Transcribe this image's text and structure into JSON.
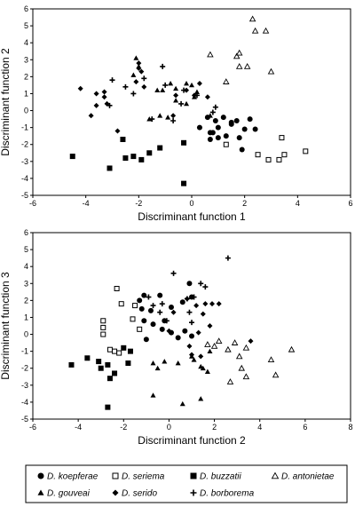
{
  "chart_data": [
    {
      "type": "scatter",
      "title": "",
      "xlabel": "Discriminant function 1",
      "ylabel": "Discriminant function 2",
      "xlim": [
        -6,
        6
      ],
      "ylim": [
        -5,
        6
      ],
      "xticks": [
        -6,
        -4,
        -2,
        0,
        2,
        4,
        6
      ],
      "yticks": [
        -5,
        -4,
        -3,
        -2,
        -1,
        0,
        1,
        2,
        3,
        4,
        5,
        6
      ],
      "series": [
        {
          "name": "D. koepferae",
          "marker": "circle-filled",
          "points": [
            [
              0.6,
              -0.4
            ],
            [
              0.9,
              -0.6
            ],
            [
              1.2,
              -0.4
            ],
            [
              1.0,
              -1.0
            ],
            [
              0.8,
              -1.3
            ],
            [
              1.5,
              -0.7
            ],
            [
              1.3,
              -1.5
            ],
            [
              0.7,
              -1.3
            ],
            [
              2.0,
              -1.1
            ],
            [
              2.2,
              -0.5
            ],
            [
              2.4,
              -1.1
            ],
            [
              1.8,
              -1.6
            ],
            [
              1.9,
              -2.3
            ],
            [
              1.5,
              -0.8
            ],
            [
              1.0,
              -1.6
            ],
            [
              0.3,
              -1.0
            ],
            [
              0.7,
              -1.7
            ],
            [
              1.7,
              -0.6
            ]
          ]
        },
        {
          "name": "D. seriema",
          "marker": "square-open",
          "points": [
            [
              1.3,
              -2.0
            ],
            [
              2.5,
              -2.6
            ],
            [
              2.9,
              -2.9
            ],
            [
              3.3,
              -2.9
            ],
            [
              3.5,
              -2.6
            ],
            [
              3.4,
              -1.6
            ],
            [
              4.3,
              -2.4
            ]
          ]
        },
        {
          "name": "D. buzzatii",
          "marker": "square-filled",
          "points": [
            [
              -4.5,
              -2.7
            ],
            [
              -3.1,
              -3.4
            ],
            [
              -2.6,
              -1.7
            ],
            [
              -2.5,
              -2.8
            ],
            [
              -2.2,
              -2.7
            ],
            [
              -1.9,
              -2.9
            ],
            [
              -1.6,
              -2.5
            ],
            [
              -1.2,
              -2.2
            ],
            [
              -0.3,
              -1.9
            ],
            [
              -0.3,
              -4.3
            ]
          ]
        },
        {
          "name": "D. antonietae",
          "marker": "triangle-open",
          "points": [
            [
              2.3,
              5.4
            ],
            [
              2.4,
              4.7
            ],
            [
              2.8,
              4.7
            ],
            [
              0.7,
              3.3
            ],
            [
              1.7,
              3.2
            ],
            [
              1.8,
              3.4
            ],
            [
              2.1,
              2.6
            ],
            [
              1.3,
              1.7
            ],
            [
              1.8,
              2.6
            ],
            [
              3.0,
              2.3
            ]
          ]
        },
        {
          "name": "D. gouveai",
          "marker": "triangle-filled",
          "points": [
            [
              -2.1,
              3.1
            ],
            [
              -2.0,
              2.6
            ],
            [
              -2.2,
              2.1
            ],
            [
              -1.3,
              1.2
            ],
            [
              -1.1,
              1.2
            ],
            [
              -0.6,
              0.6
            ],
            [
              -0.2,
              1.6
            ],
            [
              0.0,
              1.5
            ],
            [
              0.2,
              1.1
            ],
            [
              0.1,
              0.8
            ],
            [
              -0.2,
              0.4
            ],
            [
              -0.6,
              1.3
            ],
            [
              -0.8,
              1.6
            ],
            [
              -1.6,
              -0.5
            ],
            [
              -1.2,
              -0.3
            ],
            [
              -0.9,
              -0.4
            ],
            [
              0.7,
              -0.3
            ]
          ]
        },
        {
          "name": "D. serido",
          "marker": "diamond-filled",
          "points": [
            [
              -4.2,
              1.3
            ],
            [
              -3.6,
              1.0
            ],
            [
              -3.3,
              0.8
            ],
            [
              -3.2,
              0.4
            ],
            [
              -3.3,
              1.1
            ],
            [
              -3.6,
              0.3
            ],
            [
              -3.8,
              -0.3
            ],
            [
              -2.0,
              2.8
            ],
            [
              -2.0,
              2.5
            ],
            [
              -1.9,
              2.3
            ],
            [
              -2.1,
              1.7
            ],
            [
              -1.8,
              1.4
            ],
            [
              -0.6,
              0.9
            ],
            [
              -0.2,
              1.2
            ],
            [
              0.1,
              0.9
            ],
            [
              0.3,
              1.6
            ],
            [
              0.6,
              0.8
            ],
            [
              -0.7,
              -0.3
            ],
            [
              -2.8,
              -1.2
            ]
          ]
        },
        {
          "name": "D. borborema",
          "marker": "plus",
          "points": [
            [
              -3.0,
              1.8
            ],
            [
              -2.5,
              1.4
            ],
            [
              -3.1,
              0.3
            ],
            [
              -2.2,
              1.0
            ],
            [
              -1.8,
              1.9
            ],
            [
              -1.1,
              2.6
            ],
            [
              -1.0,
              1.5
            ],
            [
              -1.5,
              -0.5
            ],
            [
              -0.7,
              -0.6
            ],
            [
              -0.4,
              0.4
            ],
            [
              -0.3,
              1.2
            ],
            [
              0.2,
              0.9
            ],
            [
              0.8,
              -0.1
            ],
            [
              0.9,
              0.2
            ]
          ]
        }
      ]
    },
    {
      "type": "scatter",
      "title": "",
      "xlabel": "Discriminant function 2",
      "ylabel": "Discriminant function 3",
      "xlim": [
        -6,
        8
      ],
      "ylim": [
        -5,
        6
      ],
      "xticks": [
        -6,
        -4,
        -2,
        0,
        2,
        4,
        6,
        8
      ],
      "yticks": [
        -5,
        -4,
        -3,
        -2,
        -1,
        0,
        1,
        2,
        3,
        4,
        5,
        6
      ],
      "series": [
        {
          "name": "D. koepferae",
          "marker": "circle-filled",
          "points": [
            [
              -1.3,
              2.0
            ],
            [
              -1.1,
              2.3
            ],
            [
              -0.4,
              2.3
            ],
            [
              -0.8,
              1.4
            ],
            [
              -1.2,
              1.5
            ],
            [
              -1.1,
              0.8
            ],
            [
              -0.7,
              0.6
            ],
            [
              -0.3,
              0.3
            ],
            [
              0.1,
              0.1
            ],
            [
              0.4,
              -0.2
            ],
            [
              0.7,
              0.2
            ],
            [
              1.0,
              -0.1
            ],
            [
              0.9,
              3.0
            ],
            [
              1.0,
              2.2
            ],
            [
              0.6,
              1.9
            ],
            [
              0.1,
              1.6
            ],
            [
              -0.2,
              0.8
            ],
            [
              -1.0,
              -0.3
            ]
          ]
        },
        {
          "name": "D. seriema",
          "marker": "square-open",
          "points": [
            [
              -2.3,
              2.7
            ],
            [
              -2.1,
              1.8
            ],
            [
              -2.9,
              0.8
            ],
            [
              -2.9,
              0.4
            ],
            [
              -2.9,
              0.0
            ],
            [
              -2.6,
              -0.9
            ],
            [
              -2.4,
              -1.0
            ],
            [
              -1.5,
              1.7
            ],
            [
              -1.6,
              0.9
            ],
            [
              -1.3,
              0.3
            ],
            [
              -2.2,
              -1.1
            ]
          ]
        },
        {
          "name": "D. buzzatii",
          "marker": "square-filled",
          "points": [
            [
              -4.3,
              -1.8
            ],
            [
              -3.6,
              -1.4
            ],
            [
              -3.1,
              -1.6
            ],
            [
              -3.0,
              -2.0
            ],
            [
              -2.7,
              -1.8
            ],
            [
              -2.6,
              -2.6
            ],
            [
              -2.7,
              -4.3
            ],
            [
              -2.4,
              -2.3
            ],
            [
              -2.0,
              -0.8
            ],
            [
              -1.8,
              -1.7
            ],
            [
              -1.7,
              -1.0
            ]
          ]
        },
        {
          "name": "D. antonietae",
          "marker": "triangle-open",
          "points": [
            [
              1.7,
              -0.6
            ],
            [
              2.0,
              -0.7
            ],
            [
              2.2,
              -0.4
            ],
            [
              2.6,
              -0.9
            ],
            [
              2.9,
              -0.5
            ],
            [
              3.4,
              -0.8
            ],
            [
              3.1,
              -1.3
            ],
            [
              3.2,
              -2.0
            ],
            [
              3.4,
              -2.5
            ],
            [
              2.7,
              -2.8
            ],
            [
              4.5,
              -1.5
            ],
            [
              4.7,
              -2.4
            ],
            [
              5.4,
              -0.9
            ]
          ]
        },
        {
          "name": "D. gouveai",
          "marker": "triangle-filled",
          "points": [
            [
              -0.7,
              -1.7
            ],
            [
              -0.5,
              -2.0
            ],
            [
              -0.2,
              -1.6
            ],
            [
              0.4,
              -1.7
            ],
            [
              1.0,
              -1.3
            ],
            [
              1.4,
              -1.9
            ],
            [
              1.5,
              -2.0
            ],
            [
              1.7,
              -2.2
            ],
            [
              1.4,
              -3.8
            ],
            [
              0.6,
              -4.1
            ],
            [
              -0.7,
              -3.6
            ],
            [
              1.8,
              -1.0
            ],
            [
              1.1,
              -1.5
            ]
          ]
        },
        {
          "name": "D. serido",
          "marker": "diamond-filled",
          "points": [
            [
              0.8,
              2.1
            ],
            [
              1.2,
              1.7
            ],
            [
              1.6,
              1.8
            ],
            [
              1.9,
              1.8
            ],
            [
              2.2,
              1.8
            ],
            [
              1.5,
              1.2
            ],
            [
              1.8,
              0.5
            ],
            [
              1.3,
              0.1
            ],
            [
              0.9,
              -0.7
            ],
            [
              1.0,
              -1.2
            ],
            [
              1.4,
              -1.3
            ],
            [
              0.2,
              1.3
            ],
            [
              3.6,
              -0.4
            ],
            [
              0.0,
              0.2
            ]
          ]
        },
        {
          "name": "D. borborema",
          "marker": "plus",
          "points": [
            [
              2.6,
              4.5
            ],
            [
              0.2,
              3.6
            ],
            [
              1.4,
              3.0
            ],
            [
              1.6,
              2.8
            ],
            [
              1.1,
              2.2
            ],
            [
              0.8,
              2.1
            ],
            [
              0.9,
              1.3
            ],
            [
              1.0,
              0.7
            ],
            [
              -0.9,
              2.2
            ],
            [
              -0.3,
              1.8
            ],
            [
              -0.1,
              0.8
            ],
            [
              -0.4,
              1.3
            ],
            [
              -0.7,
              1.7
            ]
          ]
        }
      ]
    }
  ],
  "legend": {
    "items": [
      {
        "label": "D. koepferae",
        "marker": "circle-filled"
      },
      {
        "label": "D. seriema",
        "marker": "square-open"
      },
      {
        "label": "D. buzzatii",
        "marker": "square-filled"
      },
      {
        "label": "D. antonietae",
        "marker": "triangle-open"
      },
      {
        "label": "D. gouveai",
        "marker": "triangle-filled"
      },
      {
        "label": "D. serido",
        "marker": "diamond-filled"
      },
      {
        "label": "D. borborema",
        "marker": "plus"
      }
    ]
  }
}
